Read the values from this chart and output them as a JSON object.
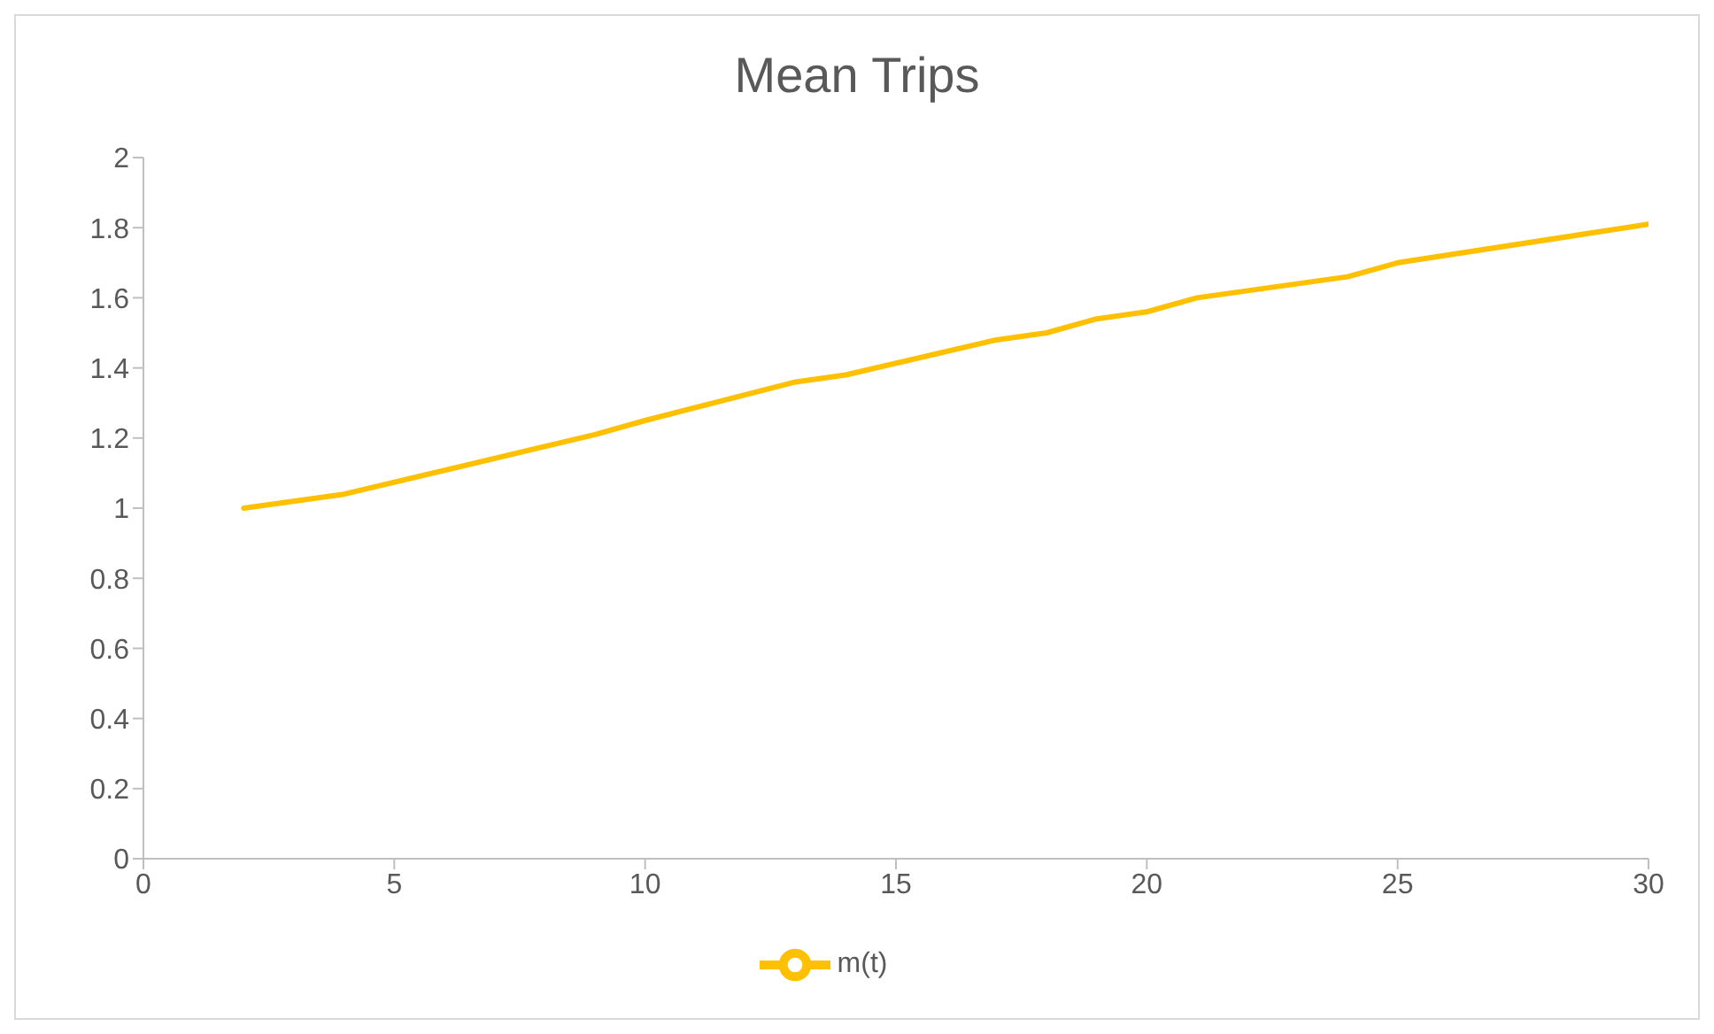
{
  "chart_data": {
    "type": "line",
    "title": "Mean Trips",
    "x": [
      2,
      4,
      9,
      10,
      13,
      14,
      17,
      18,
      19,
      20,
      21,
      24,
      25,
      30
    ],
    "series": [
      {
        "name": "m(t)",
        "color": "#ffc000",
        "values": [
          1.0,
          1.04,
          1.21,
          1.25,
          1.36,
          1.38,
          1.48,
          1.5,
          1.54,
          1.56,
          1.6,
          1.66,
          1.7,
          1.81
        ]
      }
    ],
    "xlim": [
      0,
      30
    ],
    "xticks": [
      0,
      5,
      10,
      15,
      20,
      25,
      30
    ],
    "ylim": [
      0,
      2
    ],
    "yticks": [
      0,
      0.2,
      0.4,
      0.6,
      0.8,
      1,
      1.2,
      1.4,
      1.6,
      1.8,
      2
    ],
    "grid": false,
    "legend": "bottom",
    "marker": "none",
    "line_style": "solid"
  }
}
